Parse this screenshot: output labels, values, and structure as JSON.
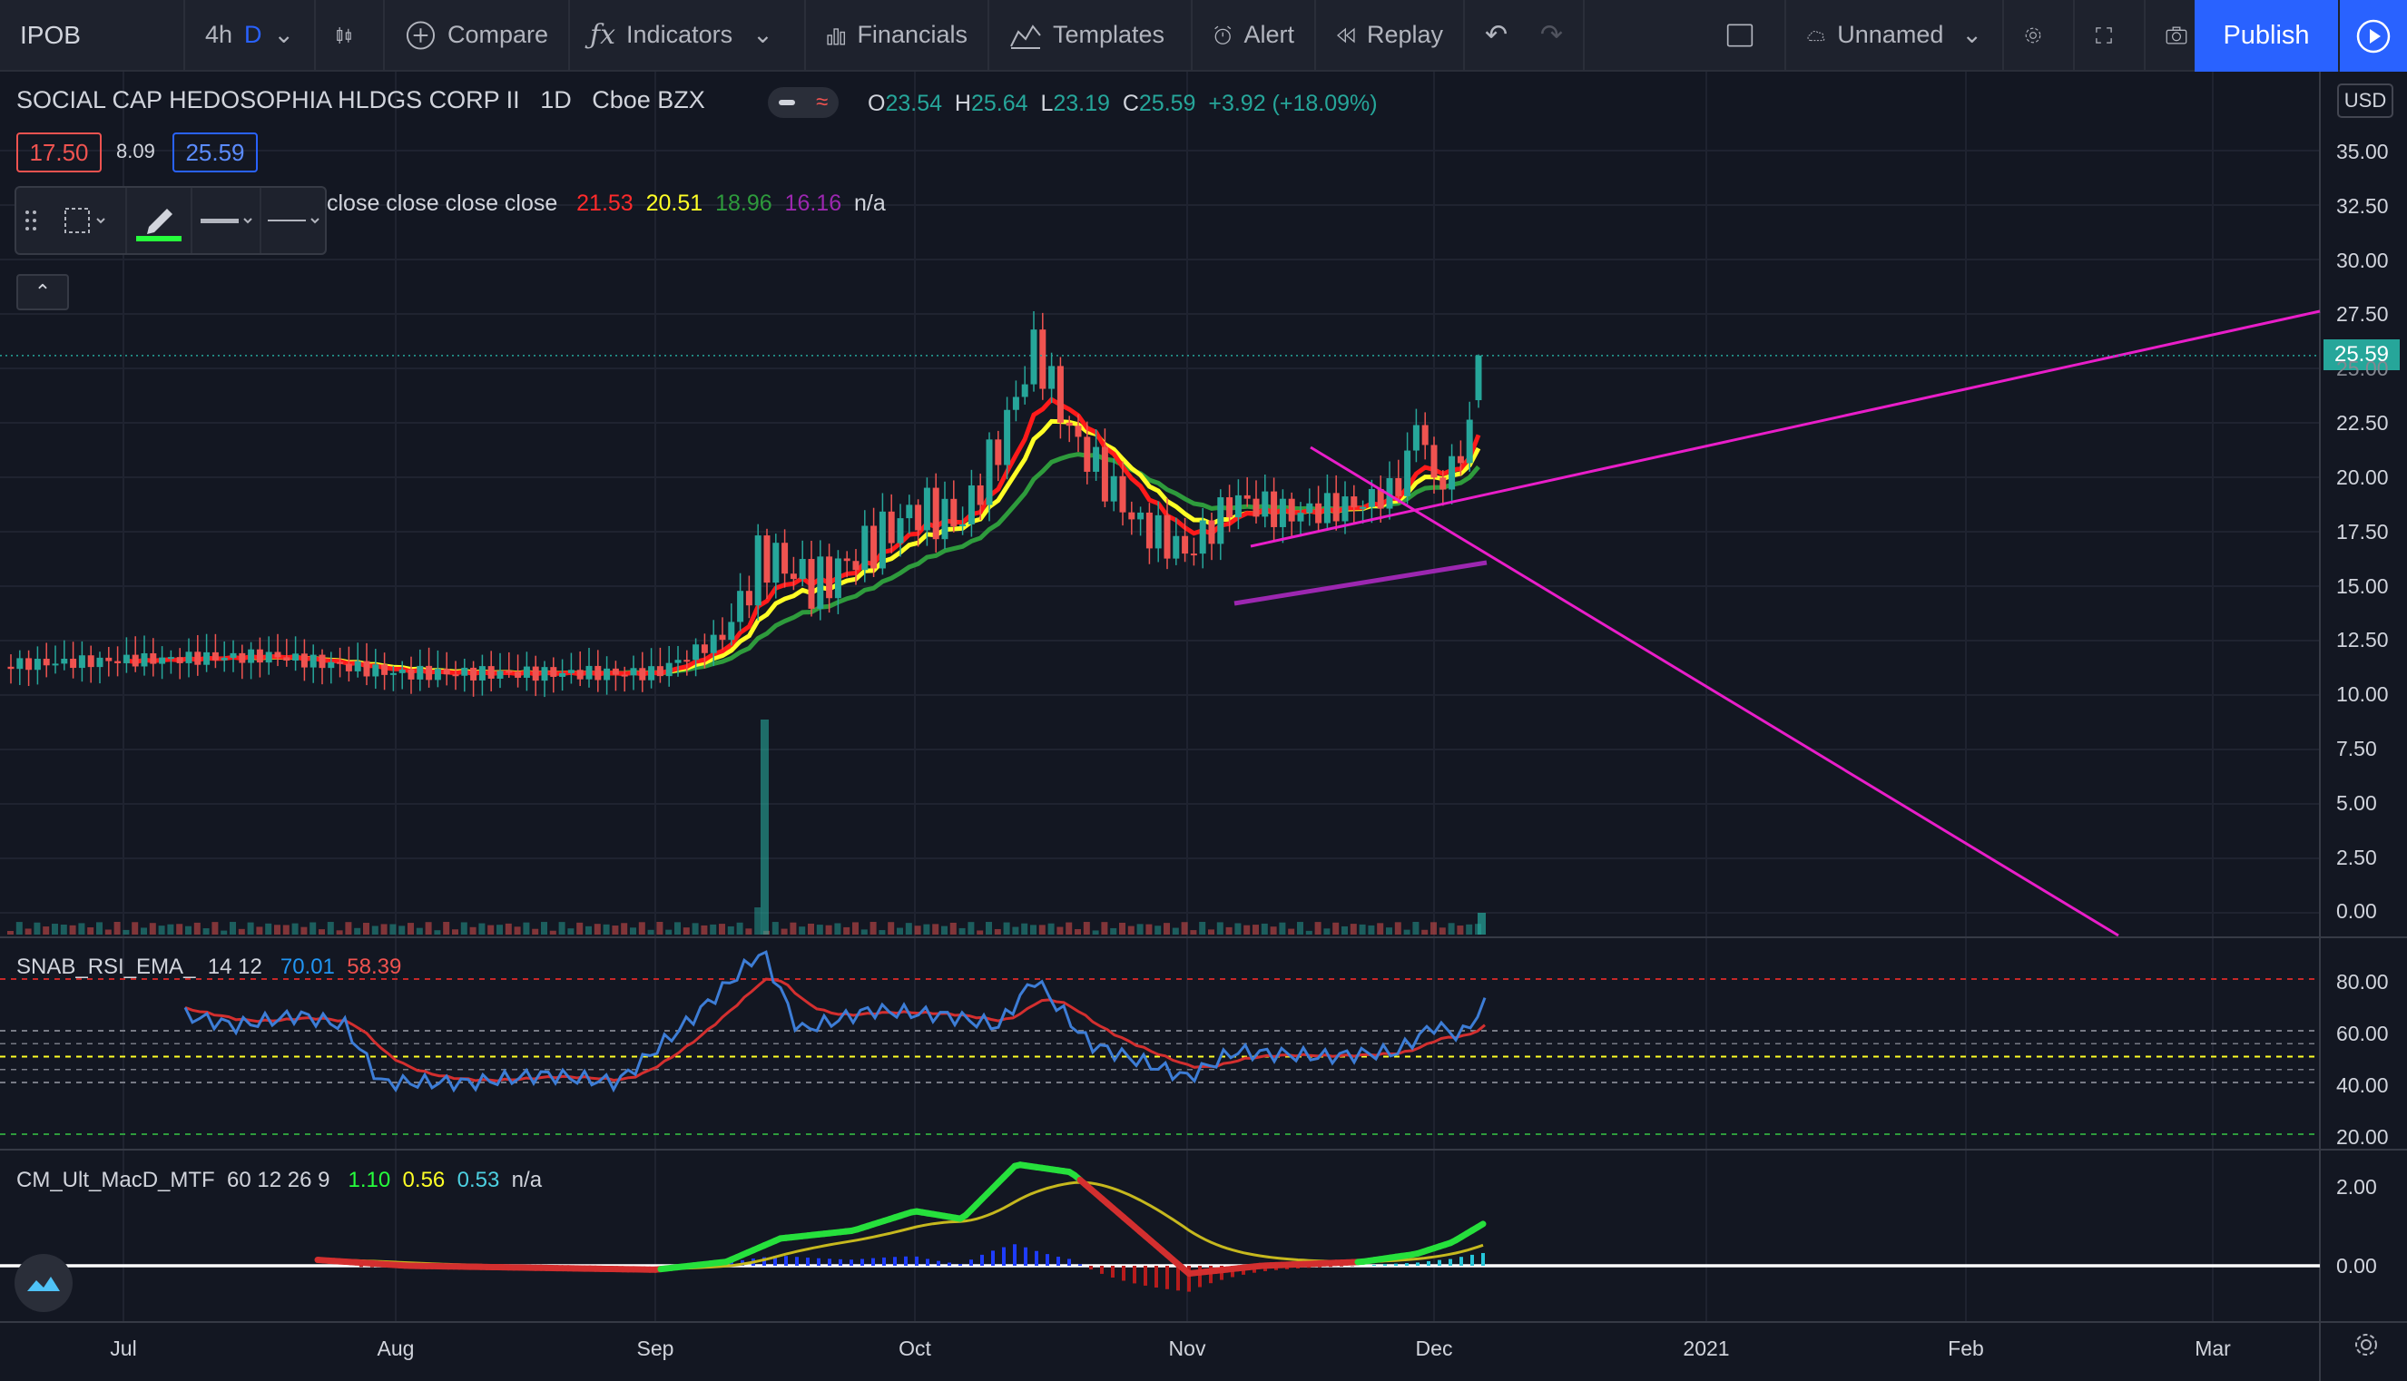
{
  "toolbar": {
    "symbol": "IPOB",
    "interval_4h": "4h",
    "interval_d": "D",
    "compare": "Compare",
    "indicators": "Indicators",
    "financials": "Financials",
    "templates": "Templates",
    "alert": "Alert",
    "replay": "Replay",
    "layout_name": "Unnamed",
    "publish": "Publish"
  },
  "header": {
    "title": "SOCIAL CAP HEDOSOPHIA HLDGS CORP II",
    "interval": "1D",
    "exchange": "Cboe BZX",
    "ohlc": {
      "o_label": "O",
      "o": "23.54",
      "h_label": "H",
      "h": "25.64",
      "l_label": "L",
      "l": "23.19",
      "c_label": "C",
      "c": "25.59",
      "change": "+3.92 (+18.09%)"
    },
    "bid": "17.50",
    "spread": "8.09",
    "ask": "25.59"
  },
  "ma_legend": {
    "label": "close close close close",
    "v1": "21.53",
    "v2": "20.51",
    "v3": "18.96",
    "v4": "16.16",
    "v5": "n/a"
  },
  "currency": "USD",
  "last_price_tag": "25.59",
  "price_axis": [
    "35.00",
    "32.50",
    "30.00",
    "27.50",
    "25.00",
    "22.50",
    "20.00",
    "17.50",
    "15.00",
    "12.50",
    "10.00",
    "7.50",
    "5.00",
    "2.50",
    "0.00"
  ],
  "rsi": {
    "name": "SNAB_RSI_EMA_",
    "params": "14 12",
    "v1": "70.01",
    "v2": "58.39",
    "axis": [
      "80.00",
      "60.00",
      "40.00",
      "20.00"
    ]
  },
  "macd": {
    "name": "CM_Ult_MacD_MTF",
    "params": "60 12 26 9",
    "v1": "1.10",
    "v2": "0.56",
    "v3": "0.53",
    "v4": "n/a",
    "axis": [
      "2.00",
      "0.00"
    ]
  },
  "time_axis": [
    "Jul",
    "Aug",
    "Sep",
    "Oct",
    "Nov",
    "Dec",
    "2021",
    "Feb",
    "Mar"
  ],
  "colors": {
    "up": "#26a69a",
    "down": "#ef5350",
    "ema_red": "#ff1a1a",
    "ema_yellow": "#ffff26",
    "ema_green": "#2e9b3c",
    "ema_purple": "#9c27b0",
    "trendline": "#e91ec9",
    "rsi": "#2962ff",
    "accent": "#2962ff"
  },
  "chart_data": {
    "type": "candlestick",
    "title": "SOCIAL CAP HEDOSOPHIA HLDGS CORP II, 1D, Cboe BZX",
    "ylim": [
      0,
      35
    ],
    "x_ticks": [
      "Jul",
      "Aug",
      "Sep",
      "Oct",
      "Nov",
      "Dec",
      "2021",
      "Feb",
      "Mar"
    ],
    "series": [
      {
        "name": "price_close_approx",
        "x": [
          "Jul",
          "Aug",
          "Sep",
          "Sep-mid",
          "Oct",
          "Oct-mid",
          "Nov",
          "Nov-mid",
          "Dec",
          "Dec-7"
        ],
        "values": [
          11.6,
          11.0,
          11.0,
          16.8,
          18.5,
          26.0,
          16.5,
          18.3,
          19.0,
          25.59
        ]
      },
      {
        "name": "ema_red",
        "values": [
          11.3,
          11.3,
          10.8,
          13.5,
          17.0,
          21.8,
          18.5,
          18.5,
          19.2,
          21.53
        ]
      },
      {
        "name": "ema_yellow",
        "values": [
          11.5,
          11.2,
          10.8,
          12.5,
          15.0,
          19.8,
          18.0,
          18.5,
          19.0,
          20.51
        ]
      },
      {
        "name": "ema_green",
        "values": [
          11.2,
          11.0,
          10.9,
          12.0,
          14.0,
          17.5,
          17.2,
          17.8,
          18.3,
          18.96
        ]
      }
    ],
    "volume_spike_note": "Sep-mid",
    "last_close": 25.59
  }
}
